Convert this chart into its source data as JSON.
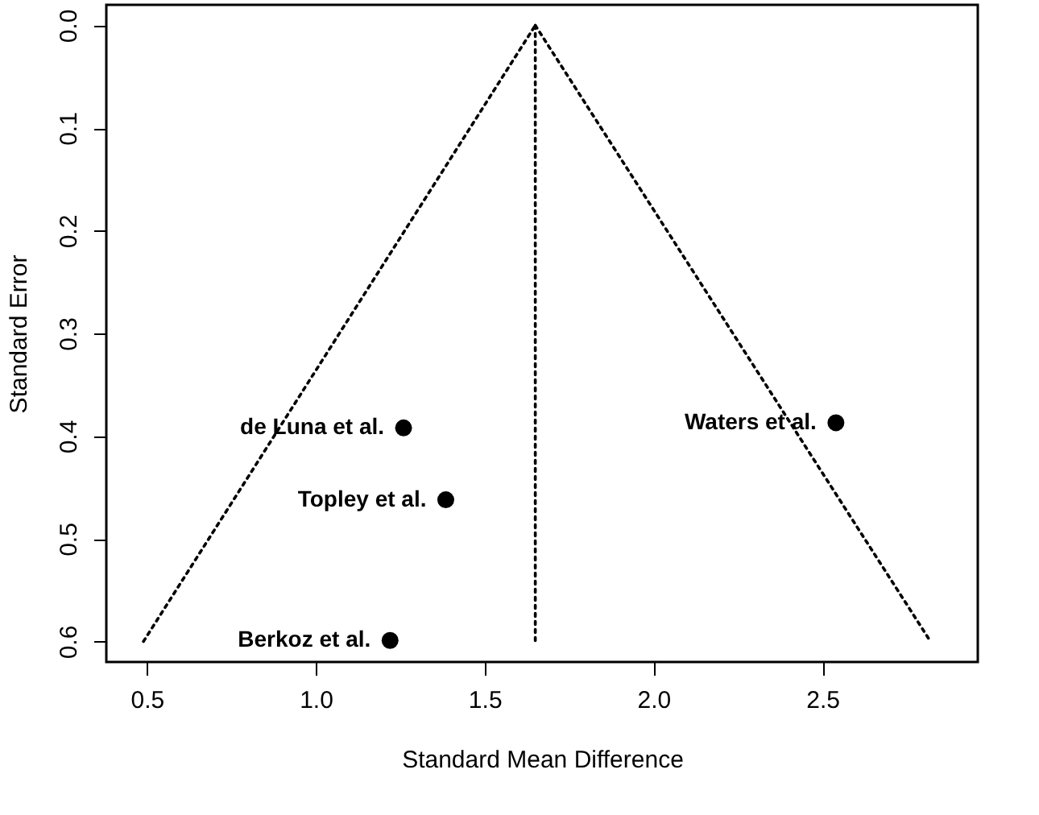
{
  "chart_data": {
    "type": "scatter",
    "xlabel": "Standard Mean Difference",
    "ylabel": "Standard Error",
    "xlim": [
      0.38,
      2.96
    ],
    "xticks": [
      0.5,
      {
        "value": 1,
        "label": "1.0"
      },
      1.5,
      {
        "value": 2,
        "label": "2.0"
      },
      2.5
    ],
    "ylim": [
      0.62,
      -0.02
    ],
    "yticks": [
      {
        "value": 0,
        "label": "0.0"
      },
      0.1,
      0.2,
      0.3,
      0.4,
      0.5,
      0.6
    ],
    "grid": false,
    "legend": false,
    "series": [
      {
        "marker": "circle",
        "name": "de Luna et al.",
        "color": "#000000",
        "x": [
          1.26
        ],
        "values": [
          0.392
        ]
      },
      {
        "marker": "circle",
        "name": "Topley et al.",
        "color": "#000000",
        "x": [
          1.385
        ],
        "values": [
          0.462
        ]
      },
      {
        "marker": "circle",
        "name": "Berkoz et al.",
        "color": "#000000",
        "x": [
          1.22
        ],
        "values": [
          0.599
        ]
      },
      {
        "marker": "circle",
        "name": "Waters et al.",
        "color": "#000000",
        "x": [
          2.54
        ],
        "values": [
          0.387
        ]
      },
      {
        "type": "line",
        "line_style": "dotted",
        "color": "#000000",
        "x": [
          0.49,
          1.65
        ],
        "values": [
          0.6,
          0.0
        ]
      },
      {
        "type": "line",
        "line_style": "dotted",
        "color": "#000000",
        "x": [
          1.65,
          2.82
        ],
        "values": [
          0.0,
          0.6
        ]
      },
      {
        "type": "line",
        "line_style": "dotted",
        "color": "#000000",
        "x": [
          1.65,
          1.65
        ],
        "values": [
          0.0,
          0.6
        ]
      }
    ]
  }
}
